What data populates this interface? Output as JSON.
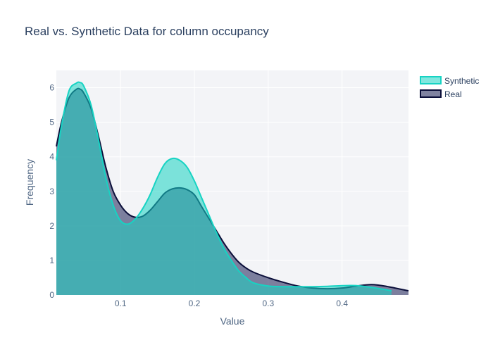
{
  "chart_data": {
    "type": "area",
    "title": "Real vs. Synthetic Data for column occupancy",
    "xlabel": "Value",
    "ylabel": "Frequency",
    "xlim": [
      0.013,
      0.49
    ],
    "ylim": [
      0,
      6.5
    ],
    "xticks": [
      0.1,
      0.2,
      0.3,
      0.4
    ],
    "xtick_labels": [
      "0.1",
      "0.2",
      "0.3",
      "0.4"
    ],
    "yticks": [
      0,
      1,
      2,
      3,
      4,
      5,
      6
    ],
    "ytick_labels": [
      "0",
      "1",
      "2",
      "3",
      "4",
      "5",
      "6"
    ],
    "grid": true,
    "legend_position": "top-right",
    "series": [
      {
        "name": "Synthetic",
        "line_color": "#17d3c3",
        "fill_color": "rgba(23,211,195,0.55)",
        "x": [
          0.013,
          0.02,
          0.03,
          0.04,
          0.045,
          0.05,
          0.06,
          0.07,
          0.08,
          0.09,
          0.1,
          0.11,
          0.12,
          0.13,
          0.14,
          0.15,
          0.16,
          0.17,
          0.18,
          0.19,
          0.2,
          0.21,
          0.22,
          0.23,
          0.24,
          0.25,
          0.26,
          0.27,
          0.28,
          0.3,
          0.32,
          0.34,
          0.36,
          0.38,
          0.4,
          0.42,
          0.44,
          0.46,
          0.467
        ],
        "y": [
          3.9,
          4.9,
          5.9,
          6.13,
          6.15,
          6.05,
          5.5,
          4.5,
          3.4,
          2.6,
          2.15,
          2.05,
          2.2,
          2.5,
          2.9,
          3.4,
          3.8,
          3.95,
          3.9,
          3.7,
          3.3,
          2.8,
          2.3,
          1.8,
          1.35,
          1.0,
          0.7,
          0.5,
          0.35,
          0.26,
          0.24,
          0.24,
          0.24,
          0.25,
          0.27,
          0.27,
          0.22,
          0.15,
          0.12
        ]
      },
      {
        "name": "Real",
        "line_color": "#0b0f3a",
        "fill_color": "rgba(60,64,110,0.65)",
        "x": [
          0.013,
          0.02,
          0.03,
          0.04,
          0.045,
          0.05,
          0.06,
          0.07,
          0.08,
          0.09,
          0.1,
          0.11,
          0.12,
          0.13,
          0.14,
          0.15,
          0.16,
          0.17,
          0.18,
          0.19,
          0.2,
          0.21,
          0.22,
          0.23,
          0.24,
          0.25,
          0.26,
          0.27,
          0.28,
          0.3,
          0.32,
          0.34,
          0.36,
          0.38,
          0.4,
          0.42,
          0.44,
          0.46,
          0.49
        ],
        "y": [
          4.3,
          5.0,
          5.7,
          5.95,
          5.96,
          5.85,
          5.4,
          4.6,
          3.7,
          3.0,
          2.6,
          2.35,
          2.25,
          2.28,
          2.45,
          2.7,
          2.95,
          3.07,
          3.1,
          3.05,
          2.9,
          2.55,
          2.2,
          1.85,
          1.5,
          1.2,
          0.95,
          0.78,
          0.66,
          0.5,
          0.37,
          0.26,
          0.2,
          0.18,
          0.2,
          0.26,
          0.3,
          0.25,
          0.12
        ]
      }
    ]
  }
}
